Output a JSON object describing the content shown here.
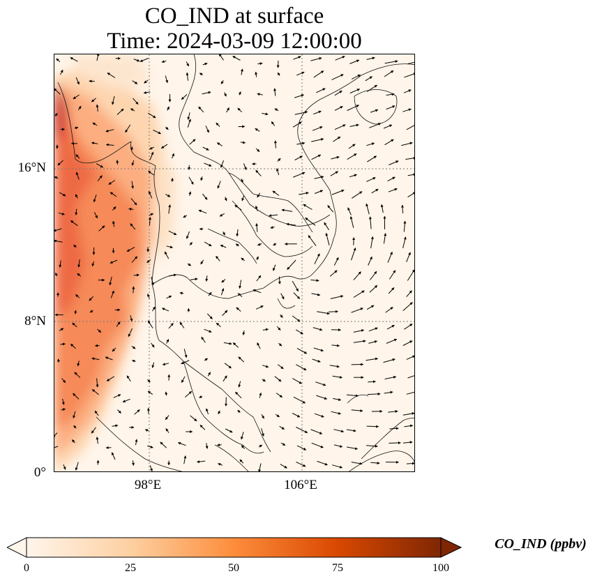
{
  "title": {
    "line1": "CO_IND at surface",
    "line2": "Time: 2024-03-09 12:00:00"
  },
  "map": {
    "lat_labels": [
      "16°N",
      "8°N",
      "0°"
    ],
    "lon_labels": [
      "98°E",
      "106°E"
    ],
    "gridlines": "dotted",
    "colormap": [
      "#fff5eb",
      "#fdd0a2",
      "#fd8d3c",
      "#d94801",
      "#7f2704"
    ]
  },
  "colorbar": {
    "ticks": [
      "0",
      "25",
      "50",
      "75",
      "100"
    ],
    "label": "CO_IND (ppbv)",
    "min": 0,
    "max": 100,
    "extend": "both"
  },
  "icons": {
    "wind_vectors": "arrow-icon"
  }
}
